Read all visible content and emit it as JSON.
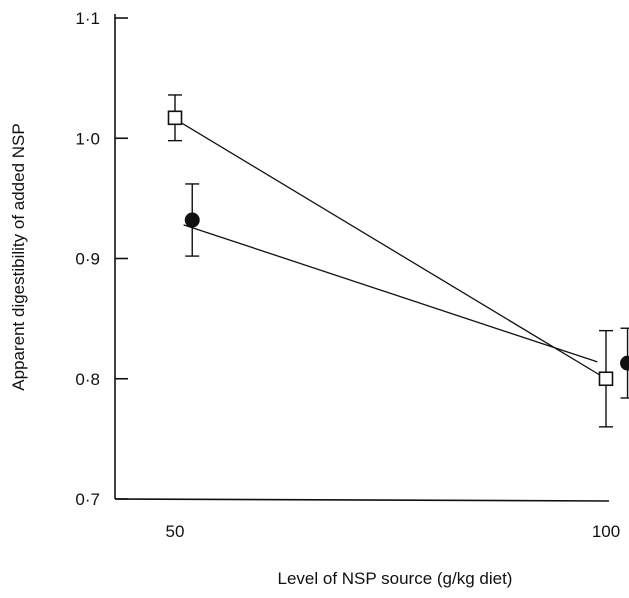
{
  "chart_data": {
    "type": "scatter",
    "xlabel": "Level of NSP source (g/kg diet)",
    "ylabel": "Apparent digestibility of added NSP",
    "x_ticks": [
      50,
      100
    ],
    "x_tick_labels": [
      "50",
      "100"
    ],
    "y_ticks": [
      0.7,
      0.8,
      0.9,
      1.0,
      1.1
    ],
    "y_tick_labels": [
      "0·7",
      "0·8",
      "0·9",
      "1·0",
      "1·1"
    ],
    "ylim": [
      0.7,
      1.1
    ],
    "xlim": [
      45,
      103
    ],
    "grid": false,
    "series": [
      {
        "marker": "open-square",
        "x": [
          50,
          100
        ],
        "y": [
          1.017,
          0.8
        ],
        "error": [
          0.019,
          0.04
        ],
        "fit_line": {
          "x": [
            50,
            100
          ],
          "y": [
            1.016,
            0.8
          ]
        }
      },
      {
        "marker": "filled-circle",
        "x": [
          52,
          102.5
        ],
        "y": [
          0.932,
          0.813
        ],
        "error": [
          0.03,
          0.029
        ],
        "fit_line": {
          "x": [
            51,
            99
          ],
          "y": [
            0.928,
            0.814
          ]
        }
      }
    ]
  }
}
